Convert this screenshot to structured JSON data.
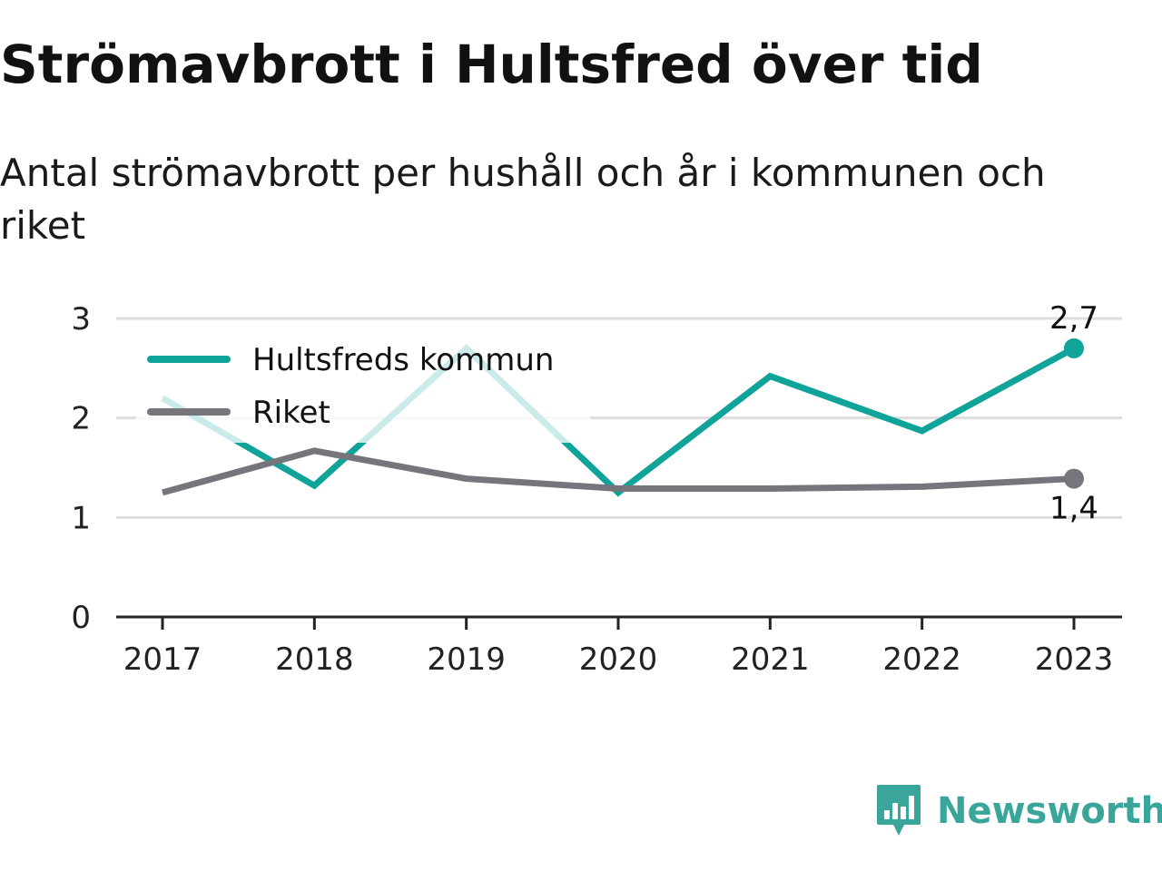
{
  "title": "Strömavbrott i Hultsfred över tid",
  "subtitle": "Antal strömavbrott per hushåll och år i kommunen och riket",
  "brand": {
    "name": "Newsworthy",
    "icon": "newsworthy-logo-icon"
  },
  "colors": {
    "hultsfred": "#0fa39a",
    "riket": "#76757c",
    "grid": "#dddddd",
    "axis": "#222222"
  },
  "chart_data": {
    "type": "line",
    "title": "Strömavbrott i Hultsfred över tid",
    "subtitle": "Antal strömavbrott per hushåll och år i kommunen och riket",
    "xlabel": "",
    "ylabel": "",
    "categories": [
      "2017",
      "2018",
      "2019",
      "2020",
      "2021",
      "2022",
      "2023"
    ],
    "yticks": [
      "0",
      "1",
      "2",
      "3"
    ],
    "ylim": [
      0,
      3
    ],
    "grid": true,
    "legend": "top-left",
    "series": [
      {
        "name": "Hultsfreds kommun",
        "values": [
          2.2,
          1.32,
          2.7,
          1.25,
          2.42,
          1.87,
          2.7
        ],
        "end_label": "2,7",
        "color": "#0fa39a"
      },
      {
        "name": "Riket",
        "values": [
          1.25,
          1.67,
          1.39,
          1.29,
          1.29,
          1.31,
          1.39
        ],
        "end_label": "1,4",
        "color": "#76757c"
      }
    ]
  }
}
